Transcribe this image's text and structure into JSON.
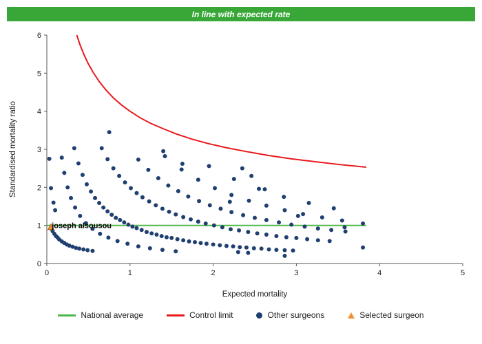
{
  "banner": {
    "text": "In line with expected rate"
  },
  "axis": {
    "xlabel": "Expected mortality",
    "ylabel": "Standardised mortality ratio",
    "xticks": [
      0,
      1,
      2,
      3,
      4,
      5
    ],
    "yticks": [
      0,
      1,
      2,
      3,
      4,
      5,
      6
    ]
  },
  "colors": {
    "banner_bg": "#38a738",
    "banner_fg": "#ffffff",
    "axis": "#555555",
    "tick_text": "#222222",
    "national": "#4bb748",
    "control": "#e8191c",
    "surgeon": "#1f3f70",
    "selected_fill": "#f29138",
    "selected_stroke": "#a9611f"
  },
  "legend": [
    {
      "label": "National average",
      "marker": "line",
      "color": "#4bb748"
    },
    {
      "label": "Control limit",
      "marker": "line",
      "color": "#e8191c"
    },
    {
      "label": "Other surgeons",
      "marker": "dot",
      "color": "#1f3f70"
    },
    {
      "label": "Selected surgeon",
      "marker": "triangle",
      "color": "#f29138"
    }
  ],
  "chart_data": {
    "type": "scatter",
    "title": "In line with expected rate",
    "xlabel": "Expected mortality",
    "ylabel": "Standardised mortality ratio",
    "xlim": [
      0,
      5
    ],
    "ylim": [
      0,
      6
    ],
    "grid": false,
    "legend_position": "bottom",
    "national_average": {
      "y": 1,
      "x_start": 0,
      "x_end": 3.84
    },
    "control_limit": {
      "points": [
        [
          0.36,
          6.0
        ],
        [
          0.4,
          5.74
        ],
        [
          0.45,
          5.47
        ],
        [
          0.5,
          5.24
        ],
        [
          0.56,
          5.01
        ],
        [
          0.63,
          4.78
        ],
        [
          0.71,
          4.56
        ],
        [
          0.8,
          4.35
        ],
        [
          0.9,
          4.16
        ],
        [
          1.0,
          4.0
        ],
        [
          1.12,
          3.83
        ],
        [
          1.25,
          3.68
        ],
        [
          1.4,
          3.54
        ],
        [
          1.56,
          3.4
        ],
        [
          1.74,
          3.27
        ],
        [
          1.94,
          3.15
        ],
        [
          2.16,
          3.04
        ],
        [
          2.4,
          2.94
        ],
        [
          2.66,
          2.84
        ],
        [
          2.94,
          2.75
        ],
        [
          3.24,
          2.67
        ],
        [
          3.56,
          2.59
        ],
        [
          3.84,
          2.53
        ]
      ]
    },
    "other_surgeons": {
      "points": [
        [
          0.33,
          3.03
        ],
        [
          0.38,
          2.63
        ],
        [
          0.43,
          2.33
        ],
        [
          0.48,
          2.08
        ],
        [
          0.53,
          1.89
        ],
        [
          0.58,
          1.72
        ],
        [
          0.63,
          1.59
        ],
        [
          0.68,
          1.47
        ],
        [
          0.73,
          1.37
        ],
        [
          0.78,
          1.28
        ],
        [
          0.83,
          1.2
        ],
        [
          0.88,
          1.14
        ],
        [
          0.93,
          1.08
        ],
        [
          0.98,
          1.02
        ],
        [
          1.03,
          0.97
        ],
        [
          1.08,
          0.93
        ],
        [
          1.14,
          0.88
        ],
        [
          1.2,
          0.83
        ],
        [
          1.26,
          0.79
        ],
        [
          1.32,
          0.76
        ],
        [
          1.38,
          0.72
        ],
        [
          1.44,
          0.69
        ],
        [
          1.5,
          0.67
        ],
        [
          1.57,
          0.64
        ],
        [
          1.64,
          0.61
        ],
        [
          1.71,
          0.58
        ],
        [
          1.78,
          0.56
        ],
        [
          1.85,
          0.54
        ],
        [
          1.92,
          0.52
        ],
        [
          2.0,
          0.5
        ],
        [
          2.08,
          0.48
        ],
        [
          2.16,
          0.46
        ],
        [
          2.24,
          0.45
        ],
        [
          2.32,
          0.43
        ],
        [
          2.4,
          0.42
        ],
        [
          2.49,
          0.4
        ],
        [
          2.58,
          0.39
        ],
        [
          2.67,
          0.37
        ],
        [
          2.76,
          0.36
        ],
        [
          2.86,
          0.35
        ],
        [
          2.96,
          0.34
        ],
        [
          0.66,
          3.03
        ],
        [
          0.73,
          2.74
        ],
        [
          0.8,
          2.5
        ],
        [
          0.87,
          2.3
        ],
        [
          0.94,
          2.13
        ],
        [
          1.01,
          1.98
        ],
        [
          1.08,
          1.85
        ],
        [
          1.15,
          1.74
        ],
        [
          1.23,
          1.63
        ],
        [
          1.31,
          1.53
        ],
        [
          1.39,
          1.44
        ],
        [
          1.47,
          1.36
        ],
        [
          1.55,
          1.29
        ],
        [
          1.64,
          1.22
        ],
        [
          1.73,
          1.16
        ],
        [
          1.82,
          1.1
        ],
        [
          1.91,
          1.05
        ],
        [
          2.01,
          1.0
        ],
        [
          2.11,
          0.95
        ],
        [
          2.21,
          0.9
        ],
        [
          2.31,
          0.87
        ],
        [
          2.42,
          0.83
        ],
        [
          2.53,
          0.79
        ],
        [
          2.64,
          0.76
        ],
        [
          2.76,
          0.72
        ],
        [
          2.88,
          0.69
        ],
        [
          3.0,
          0.67
        ],
        [
          3.13,
          0.64
        ],
        [
          3.26,
          0.61
        ],
        [
          3.4,
          0.59
        ],
        [
          1.1,
          2.73
        ],
        [
          1.22,
          2.46
        ],
        [
          1.34,
          2.24
        ],
        [
          1.46,
          2.05
        ],
        [
          1.58,
          1.9
        ],
        [
          1.7,
          1.76
        ],
        [
          1.83,
          1.64
        ],
        [
          1.96,
          1.53
        ],
        [
          2.09,
          1.44
        ],
        [
          2.22,
          1.35
        ],
        [
          2.36,
          1.27
        ],
        [
          2.5,
          1.2
        ],
        [
          2.64,
          1.14
        ],
        [
          2.79,
          1.08
        ],
        [
          2.94,
          1.02
        ],
        [
          3.1,
          0.97
        ],
        [
          3.26,
          0.92
        ],
        [
          3.42,
          0.88
        ],
        [
          3.59,
          0.84
        ],
        [
          1.42,
          2.82
        ],
        [
          1.62,
          2.47
        ],
        [
          1.82,
          2.2
        ],
        [
          2.02,
          1.98
        ],
        [
          2.22,
          1.8
        ],
        [
          2.43,
          1.65
        ],
        [
          2.64,
          1.52
        ],
        [
          2.86,
          1.4
        ],
        [
          3.08,
          1.3
        ],
        [
          3.31,
          1.21
        ],
        [
          3.55,
          1.13
        ],
        [
          3.8,
          1.05
        ],
        [
          1.95,
          2.56
        ],
        [
          2.25,
          2.22
        ],
        [
          2.55,
          1.96
        ],
        [
          2.85,
          1.75
        ],
        [
          3.15,
          1.59
        ],
        [
          3.45,
          1.45
        ],
        [
          0.18,
          2.78
        ],
        [
          0.21,
          2.38
        ],
        [
          0.25,
          2.0
        ],
        [
          0.29,
          1.72
        ],
        [
          0.34,
          1.47
        ],
        [
          0.4,
          1.25
        ],
        [
          0.47,
          1.06
        ],
        [
          0.55,
          0.91
        ],
        [
          0.64,
          0.78
        ],
        [
          0.74,
          0.68
        ],
        [
          0.85,
          0.59
        ],
        [
          0.97,
          0.52
        ],
        [
          1.1,
          0.45
        ],
        [
          1.24,
          0.4
        ],
        [
          1.39,
          0.36
        ],
        [
          1.55,
          0.32
        ],
        [
          0.05,
          0.92
        ],
        [
          0.07,
          0.85
        ],
        [
          0.09,
          0.78
        ],
        [
          0.11,
          0.72
        ],
        [
          0.13,
          0.68
        ],
        [
          0.15,
          0.63
        ],
        [
          0.18,
          0.58
        ],
        [
          0.21,
          0.54
        ],
        [
          0.24,
          0.5
        ],
        [
          0.27,
          0.47
        ],
        [
          0.31,
          0.44
        ],
        [
          0.35,
          0.41
        ],
        [
          0.39,
          0.39
        ],
        [
          0.44,
          0.37
        ],
        [
          0.49,
          0.35
        ],
        [
          0.55,
          0.33
        ],
        [
          0.03,
          2.75
        ],
        [
          0.05,
          1.98
        ],
        [
          0.08,
          1.6
        ],
        [
          0.1,
          1.4
        ],
        [
          0.75,
          3.45
        ],
        [
          1.4,
          2.95
        ],
        [
          1.63,
          2.62
        ],
        [
          2.35,
          2.5
        ],
        [
          2.46,
          2.3
        ],
        [
          2.62,
          1.95
        ],
        [
          3.02,
          1.25
        ],
        [
          3.58,
          0.95
        ],
        [
          3.8,
          0.42
        ],
        [
          2.86,
          0.2
        ],
        [
          2.3,
          0.3
        ],
        [
          2.42,
          0.28
        ],
        [
          2.2,
          1.62
        ]
      ]
    },
    "selected_surgeon": {
      "name": "joseph alsousou",
      "x": 0.05,
      "y": 0.95
    }
  }
}
